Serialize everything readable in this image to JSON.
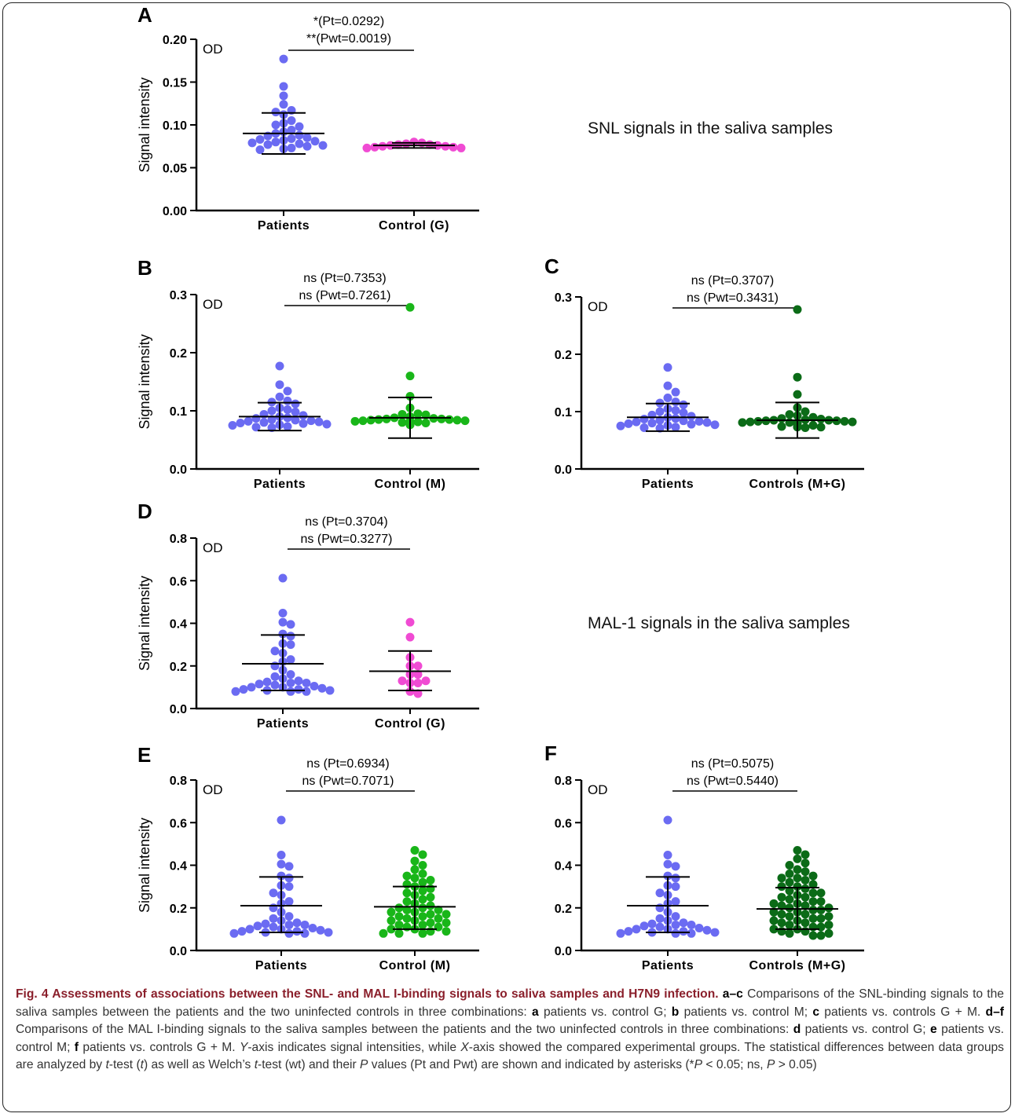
{
  "chart_data": [
    {
      "type": "scatter",
      "panel_label": "A",
      "ylabel": "Signal intensity",
      "unit_label": "OD",
      "ylim": [
        0,
        0.2
      ],
      "yticks": [
        "0.00",
        "0.05",
        "0.10",
        "0.15",
        "0.20"
      ],
      "yvals": [
        0,
        0.05,
        0.1,
        0.15,
        0.2
      ],
      "categories": [
        "Patients",
        "Control (G)"
      ],
      "stat_lines": [
        "*(Pt=0.0292)",
        "**(Pwt=0.0019)"
      ],
      "side_note": "SNL signals in the saliva samples",
      "series": [
        {
          "color": "#6b6bf2",
          "mean": 0.09,
          "sd_low": 0.066,
          "sd_high": 0.114,
          "values": [
            0.177,
            0.145,
            0.134,
            0.124,
            0.117,
            0.115,
            0.112,
            0.105,
            0.102,
            0.1,
            0.098,
            0.094,
            0.092,
            0.09,
            0.088,
            0.087,
            0.085,
            0.084,
            0.083,
            0.082,
            0.081,
            0.08,
            0.079,
            0.078,
            0.077,
            0.076,
            0.075,
            0.073,
            0.072,
            0.071
          ]
        },
        {
          "color": "#f04bd3",
          "mean": 0.076,
          "sd_low": 0.073,
          "sd_high": 0.079,
          "values": [
            0.08,
            0.079,
            0.078,
            0.077,
            0.077,
            0.076,
            0.076,
            0.075,
            0.075,
            0.074,
            0.074,
            0.073,
            0.073
          ]
        }
      ]
    },
    {
      "type": "scatter",
      "panel_label": "B",
      "ylabel": "Signal intensity",
      "unit_label": "OD",
      "ylim": [
        0,
        0.3
      ],
      "yticks": [
        "0.0",
        "0.1",
        "0.2",
        "0.3"
      ],
      "yvals": [
        0,
        0.1,
        0.2,
        0.3
      ],
      "categories": [
        "Patients",
        "Control (M)"
      ],
      "stat_lines": [
        "ns (Pt=0.7353)",
        "ns (Pwt=0.7261)"
      ],
      "series": [
        {
          "color": "#6b6bf2",
          "mean": 0.09,
          "sd_low": 0.066,
          "sd_high": 0.114,
          "values": [
            0.177,
            0.145,
            0.134,
            0.124,
            0.117,
            0.115,
            0.112,
            0.105,
            0.102,
            0.1,
            0.098,
            0.094,
            0.092,
            0.09,
            0.088,
            0.087,
            0.085,
            0.084,
            0.083,
            0.082,
            0.081,
            0.08,
            0.079,
            0.078,
            0.077,
            0.076,
            0.075,
            0.073,
            0.072,
            0.071
          ]
        },
        {
          "color": "#19b619",
          "mean": 0.088,
          "sd_low": 0.053,
          "sd_high": 0.123,
          "values": [
            0.278,
            0.16,
            0.125,
            0.105,
            0.095,
            0.094,
            0.093,
            0.09,
            0.088,
            0.087,
            0.086,
            0.086,
            0.085,
            0.085,
            0.084,
            0.084,
            0.083,
            0.083,
            0.082,
            0.082,
            0.081,
            0.081,
            0.08,
            0.08,
            0.079,
            0.079,
            0.078,
            0.078,
            0.077,
            0.077,
            0.076,
            0.076
          ]
        }
      ]
    },
    {
      "type": "scatter",
      "panel_label": "C",
      "ylabel": "",
      "unit_label": "OD",
      "ylim": [
        0,
        0.3
      ],
      "yticks": [
        "0.0",
        "0.1",
        "0.2",
        "0.3"
      ],
      "yvals": [
        0,
        0.1,
        0.2,
        0.3
      ],
      "categories": [
        "Patients",
        "Controls (M+G)"
      ],
      "stat_lines": [
        "ns (Pt=0.3707)",
        "ns (Pwt=0.3431)"
      ],
      "series": [
        {
          "color": "#6b6bf2",
          "mean": 0.09,
          "sd_low": 0.066,
          "sd_high": 0.114,
          "values": [
            0.177,
            0.145,
            0.134,
            0.124,
            0.117,
            0.115,
            0.112,
            0.105,
            0.102,
            0.1,
            0.098,
            0.094,
            0.092,
            0.09,
            0.088,
            0.087,
            0.085,
            0.084,
            0.083,
            0.082,
            0.081,
            0.08,
            0.079,
            0.078,
            0.077,
            0.076,
            0.075,
            0.073,
            0.072,
            0.071
          ]
        },
        {
          "color": "#0b6b17",
          "mean": 0.085,
          "sd_low": 0.054,
          "sd_high": 0.116,
          "values": [
            0.278,
            0.16,
            0.13,
            0.107,
            0.1,
            0.095,
            0.093,
            0.09,
            0.088,
            0.087,
            0.086,
            0.085,
            0.085,
            0.084,
            0.084,
            0.083,
            0.083,
            0.082,
            0.082,
            0.081,
            0.081,
            0.08,
            0.08,
            0.079,
            0.079,
            0.078,
            0.078,
            0.077,
            0.077,
            0.076,
            0.076,
            0.075,
            0.075,
            0.074,
            0.074,
            0.073,
            0.073,
            0.072
          ]
        }
      ]
    },
    {
      "type": "scatter",
      "panel_label": "D",
      "ylabel": "Signal intensity",
      "unit_label": "OD",
      "ylim": [
        0,
        0.8
      ],
      "yticks": [
        "0.0",
        "0.2",
        "0.4",
        "0.6",
        "0.8"
      ],
      "yvals": [
        0,
        0.2,
        0.4,
        0.6,
        0.8
      ],
      "categories": [
        "Patients",
        "Control (G)"
      ],
      "stat_lines": [
        "ns (Pt=0.3704)",
        "ns (Pwt=0.3277)"
      ],
      "side_note": "MAL-1 signals in the saliva samples",
      "series": [
        {
          "color": "#6b6bf2",
          "mean": 0.21,
          "sd_low": 0.085,
          "sd_high": 0.345,
          "values": [
            0.612,
            0.448,
            0.405,
            0.395,
            0.35,
            0.34,
            0.305,
            0.3,
            0.27,
            0.26,
            0.23,
            0.22,
            0.2,
            0.18,
            0.16,
            0.15,
            0.14,
            0.13,
            0.125,
            0.12,
            0.12,
            0.115,
            0.11,
            0.105,
            0.1,
            0.1,
            0.095,
            0.09,
            0.09,
            0.085,
            0.085,
            0.08,
            0.08,
            0.08
          ]
        },
        {
          "color": "#f04bd3",
          "mean": 0.175,
          "sd_low": 0.085,
          "sd_high": 0.27,
          "values": [
            0.405,
            0.335,
            0.24,
            0.2,
            0.2,
            0.16,
            0.16,
            0.13,
            0.13,
            0.12,
            0.12,
            0.08,
            0.07
          ]
        }
      ]
    },
    {
      "type": "scatter",
      "panel_label": "E",
      "ylabel": "Signal intensity",
      "unit_label": "OD",
      "ylim": [
        0,
        0.8
      ],
      "yticks": [
        "0.0",
        "0.2",
        "0.4",
        "0.6",
        "0.8"
      ],
      "yvals": [
        0,
        0.2,
        0.4,
        0.6,
        0.8
      ],
      "categories": [
        "Patients",
        "Control (M)"
      ],
      "stat_lines": [
        "ns (Pt=0.6934)",
        "ns (Pwt=0.7071)"
      ],
      "series": [
        {
          "color": "#6b6bf2",
          "mean": 0.21,
          "sd_low": 0.085,
          "sd_high": 0.345,
          "values": [
            0.612,
            0.448,
            0.405,
            0.395,
            0.35,
            0.34,
            0.305,
            0.3,
            0.27,
            0.26,
            0.23,
            0.22,
            0.2,
            0.18,
            0.16,
            0.15,
            0.14,
            0.13,
            0.125,
            0.12,
            0.12,
            0.115,
            0.11,
            0.105,
            0.1,
            0.1,
            0.095,
            0.09,
            0.09,
            0.085,
            0.085,
            0.08,
            0.08,
            0.08
          ]
        },
        {
          "color": "#19b619",
          "mean": 0.205,
          "sd_low": 0.1,
          "sd_high": 0.3,
          "values": [
            0.47,
            0.45,
            0.42,
            0.4,
            0.38,
            0.36,
            0.35,
            0.34,
            0.33,
            0.32,
            0.31,
            0.3,
            0.29,
            0.28,
            0.27,
            0.26,
            0.25,
            0.24,
            0.23,
            0.22,
            0.21,
            0.2,
            0.2,
            0.19,
            0.19,
            0.18,
            0.18,
            0.17,
            0.17,
            0.16,
            0.16,
            0.15,
            0.15,
            0.14,
            0.14,
            0.13,
            0.13,
            0.12,
            0.12,
            0.11,
            0.11,
            0.1,
            0.1,
            0.09,
            0.09,
            0.08,
            0.08,
            0.08
          ]
        }
      ]
    },
    {
      "type": "scatter",
      "panel_label": "F",
      "ylabel": "",
      "unit_label": "OD",
      "ylim": [
        0,
        0.8
      ],
      "yticks": [
        "0.0",
        "0.2",
        "0.4",
        "0.6",
        "0.8"
      ],
      "yvals": [
        0,
        0.2,
        0.4,
        0.6,
        0.8
      ],
      "categories": [
        "Patients",
        "Controls (M+G)"
      ],
      "stat_lines": [
        "ns (Pt=0.5075)",
        "ns (Pwt=0.5440)"
      ],
      "series": [
        {
          "color": "#6b6bf2",
          "mean": 0.21,
          "sd_low": 0.085,
          "sd_high": 0.345,
          "values": [
            0.612,
            0.448,
            0.405,
            0.395,
            0.35,
            0.34,
            0.305,
            0.3,
            0.27,
            0.26,
            0.23,
            0.22,
            0.2,
            0.18,
            0.16,
            0.15,
            0.14,
            0.13,
            0.125,
            0.12,
            0.12,
            0.115,
            0.11,
            0.105,
            0.1,
            0.1,
            0.095,
            0.09,
            0.09,
            0.085,
            0.085,
            0.08,
            0.08,
            0.08
          ]
        },
        {
          "color": "#0b6b17",
          "mean": 0.195,
          "sd_low": 0.1,
          "sd_high": 0.295,
          "values": [
            0.47,
            0.45,
            0.43,
            0.41,
            0.4,
            0.38,
            0.37,
            0.36,
            0.35,
            0.34,
            0.34,
            0.33,
            0.32,
            0.31,
            0.3,
            0.3,
            0.29,
            0.28,
            0.27,
            0.27,
            0.26,
            0.25,
            0.25,
            0.24,
            0.23,
            0.23,
            0.22,
            0.22,
            0.21,
            0.21,
            0.2,
            0.2,
            0.19,
            0.19,
            0.18,
            0.18,
            0.17,
            0.17,
            0.16,
            0.16,
            0.15,
            0.15,
            0.14,
            0.14,
            0.13,
            0.13,
            0.12,
            0.12,
            0.11,
            0.11,
            0.1,
            0.1,
            0.09,
            0.09,
            0.08,
            0.08,
            0.07,
            0.07
          ]
        }
      ]
    }
  ],
  "caption": {
    "title": "Fig. 4 Assessments of associations between the SNL- and MAL I-binding signals to saliva samples and H7N9 infection.",
    "letters": {
      "a": "a",
      "c": "c",
      "b": "b",
      "d": "d",
      "e": "e",
      "f": "f"
    },
    "dash": "–",
    "t1": "Comparisons of the SNL-binding signals to the saliva samples between the patients and the two uninfected controls in three combinations:",
    "t2": "patients vs. control G;",
    "t3": "patients vs. control M;",
    "t4": "patients vs. controls G + M.",
    "t5": "Comparisons of the MAL I-binding signals to the saliva samples between the patients and the two uninfected controls in three combinations:",
    "t6": "patients vs. control G;",
    "t7": "patients vs. control M;",
    "t8": "patients vs. controls G + M.",
    "yaxis": "Y",
    "t9": "-axis indicates signal intensities, while",
    "xaxis": "X",
    "t10": "-axis showed the compared experimental groups. The statistical differences between data groups are analyzed by",
    "t_ital": "t",
    "t11": "-test (",
    "t_paren": "t",
    "t12": ") as well as Welch’s",
    "t_ital2": "t",
    "t13": "-test (wt) and their",
    "p_ital": "P",
    "t14": "values (Pt and Pwt) are shown and indicated by asterisks (*",
    "p_ital2": "P",
    "t15": "< 0.05; ns,",
    "p_ital3": "P",
    "t16": "> 0.05)"
  }
}
